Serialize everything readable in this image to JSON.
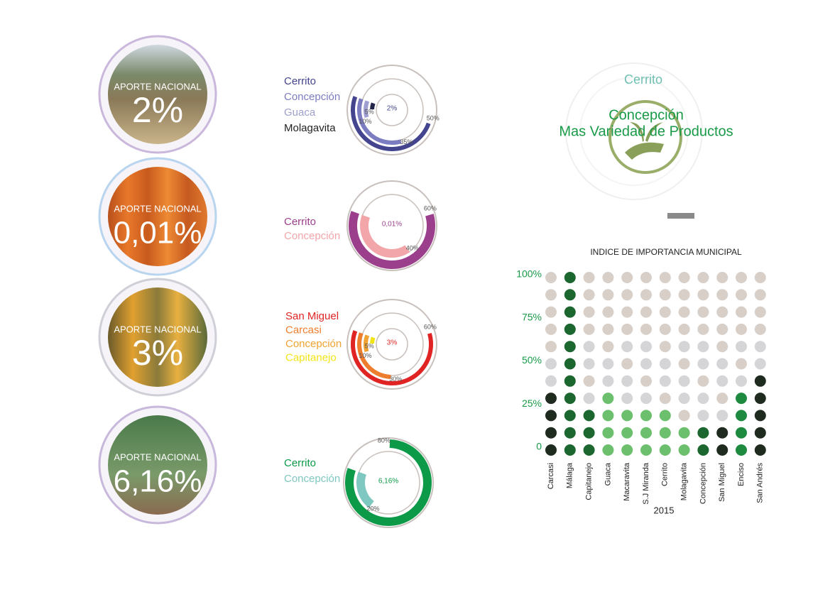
{
  "crops": [
    {
      "label": "APORTE NACIONAL",
      "value": "2%"
    },
    {
      "label": "APORTE NACIONAL",
      "value": "0,01%"
    },
    {
      "label": "APORTE NACIONAL",
      "value": "3%"
    },
    {
      "label": "APORTE NACIONAL",
      "value": "6,16%"
    }
  ],
  "feature": {
    "top": "Cerrito",
    "line1": "Concepción",
    "line2": "Mas Variedad de Productos"
  },
  "chart_data": [
    {
      "type": "radial",
      "center_label": "2%",
      "series": [
        {
          "name": "Cerrito",
          "color": "#44448f",
          "values": [
            50
          ],
          "value_labels": [
            "50%"
          ]
        },
        {
          "name": "Concepción",
          "color": "#7c7cc0",
          "values": [
            35
          ],
          "value_labels": [
            "35%"
          ]
        },
        {
          "name": "Guaca",
          "color": "#9f9fcf",
          "values": [
            10
          ],
          "value_labels": [
            "10%"
          ]
        },
        {
          "name": "Molagavita",
          "color": "#23234a",
          "values": [
            5
          ],
          "value_labels": [
            "5%"
          ]
        }
      ]
    },
    {
      "type": "radial",
      "center_label": "0,01%",
      "series": [
        {
          "name": "Cerrito",
          "color": "#9b3f8c",
          "values": [
            60
          ],
          "value_labels": [
            "60%"
          ]
        },
        {
          "name": "Concepción",
          "color": "#f3a6aa",
          "values": [
            40
          ],
          "value_labels": [
            "40%"
          ]
        }
      ]
    },
    {
      "type": "radial",
      "center_label": "3%",
      "series": [
        {
          "name": "San Miguel",
          "color": "#e02424",
          "values": [
            60
          ],
          "value_labels": [
            "60%"
          ]
        },
        {
          "name": "Carcasi",
          "color": "#ef7d2e",
          "values": [
            30
          ],
          "value_labels": [
            "30%"
          ]
        },
        {
          "name": "Concepción",
          "color": "#f0a332",
          "values": [
            10
          ],
          "value_labels": [
            "10%"
          ]
        },
        {
          "name": "Capitanejo",
          "color": "#f2e416",
          "values": [
            5
          ],
          "value_labels": [
            "5%"
          ]
        }
      ]
    },
    {
      "type": "radial",
      "center_label": "6,16%",
      "series": [
        {
          "name": "Cerrito",
          "color": "#0c9a48",
          "values": [
            80
          ],
          "value_labels": [
            "80%"
          ]
        },
        {
          "name": "Concepción",
          "color": "#7fc8c1",
          "values": [
            20
          ],
          "value_labels": [
            "20%"
          ]
        }
      ]
    },
    {
      "type": "dotmatrix",
      "title": "INDICE DE IMPORTANCIA MUNICIPAL",
      "x_label": "2015",
      "categories": [
        "Carcasi",
        "Málaga",
        "Capitanejo",
        "Guaca",
        "Macaravita",
        "S.J Miranda",
        "Cerrito",
        "Molagavita",
        "Concepción",
        "San Miguel",
        "Enciso",
        "San Andrés"
      ],
      "values": [
        30,
        100,
        20,
        30,
        20,
        20,
        20,
        10,
        10,
        10,
        30,
        40
      ],
      "colors": [
        "#1f2b1f",
        "#1c6630",
        "#1c6630",
        "#6cbf6c",
        "#6cbf6c",
        "#6cbf6c",
        "#6cbf6c",
        "#6cbf6c",
        "#1c6630",
        "#1f2b1f",
        "#1d8a40",
        "#1f2b1f"
      ],
      "ylim": [
        0,
        100
      ],
      "yticks": [
        0,
        {
          "value": 25,
          "label": "25%"
        },
        {
          "value": 50,
          "label": "50%"
        },
        {
          "value": 75,
          "label": "75%"
        },
        {
          "value": 100,
          "label": "100%"
        }
      ],
      "ystep": 10
    }
  ]
}
